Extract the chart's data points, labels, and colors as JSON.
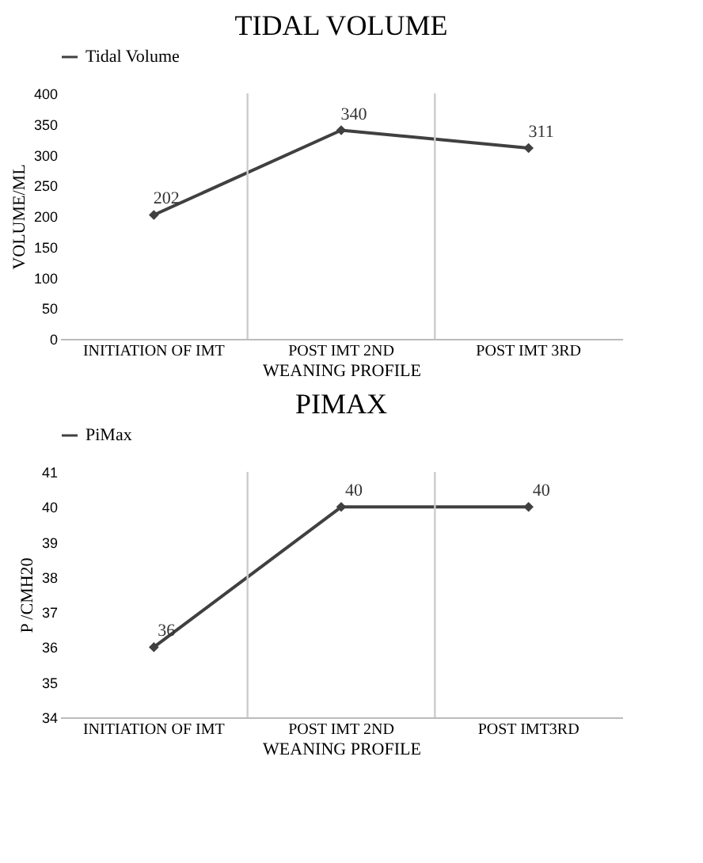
{
  "chart_data": [
    {
      "type": "line",
      "title": "TIDAL VOLUME",
      "xlabel": "WEANING PROFILE",
      "ylabel": "VOLUME/ML",
      "categories": [
        "INITIATION OF IMT",
        "POST IMT 2ND",
        "POST IMT 3RD"
      ],
      "series": [
        {
          "name": "Tidal Volume",
          "color": "#404040",
          "values": [
            202,
            340,
            311
          ]
        }
      ],
      "ylim": [
        0,
        400
      ],
      "yticks": [
        0,
        50,
        100,
        150,
        200,
        250,
        300,
        350,
        400
      ],
      "grid": "x",
      "legend": "top",
      "marker": "diamond",
      "data_labels": true
    },
    {
      "type": "line",
      "title": "PIMAX",
      "xlabel": "WEANING PROFILE",
      "ylabel": "P /CMH20",
      "categories": [
        "INITIATION OF IMT",
        "POST IMT 2ND",
        "POST IMT3RD"
      ],
      "series": [
        {
          "name": "PiMax",
          "color": "#404040",
          "values": [
            36,
            40,
            40
          ]
        }
      ],
      "ylim": [
        34,
        41
      ],
      "yticks": [
        34,
        35,
        36,
        37,
        38,
        39,
        40,
        41
      ],
      "grid": "x",
      "legend": "top",
      "marker": "diamond",
      "data_labels": true
    }
  ]
}
